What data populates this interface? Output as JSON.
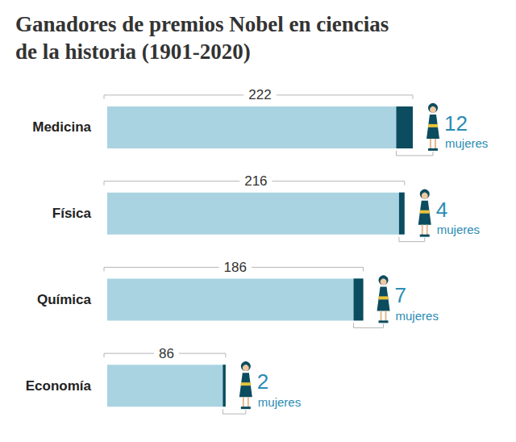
{
  "chart_data": {
    "type": "bar",
    "title": "Ganadores de premios Nobel en ciencias\nde la historia (1901-2020)",
    "orientation": "horizontal",
    "categories": [
      "Medicina",
      "Física",
      "Química",
      "Economía"
    ],
    "series": [
      {
        "values": [
          222,
          216,
          186,
          86
        ],
        "color": "#a9d3e1"
      },
      {
        "values": [
          12,
          4,
          7,
          2
        ],
        "color": "#0b4c5f",
        "value_labels": [
          "12 mujeres",
          "4 mujeres",
          "7 mujeres",
          "2 mujeres"
        ]
      }
    ],
    "xlim": [
      0,
      222
    ],
    "data_labels": true,
    "tick_labels": false,
    "grid": false
  }
}
